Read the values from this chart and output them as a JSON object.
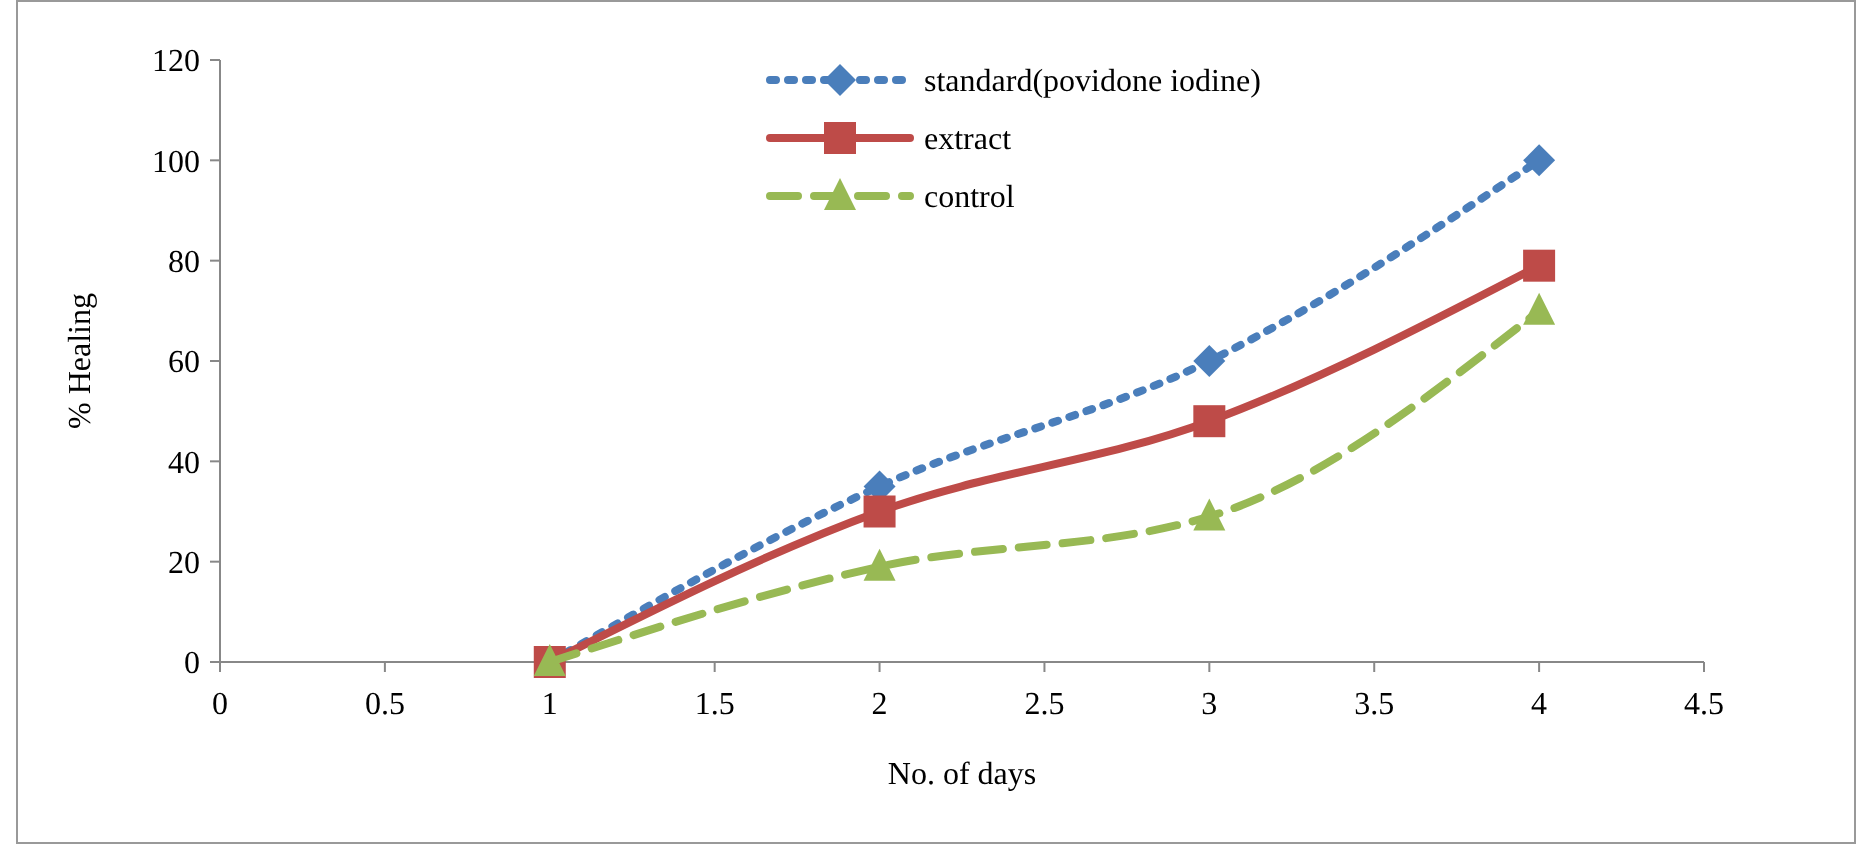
{
  "chart_data": {
    "type": "line",
    "xlabel": "No. of days",
    "ylabel": "% Healing",
    "x": [
      1,
      2,
      3,
      4
    ],
    "xlim": [
      0,
      4.5
    ],
    "xticks": [
      0,
      0.5,
      1,
      1.5,
      2,
      2.5,
      3,
      3.5,
      4,
      4.5
    ],
    "ylim": [
      0,
      120
    ],
    "yticks": [
      0,
      20,
      40,
      60,
      80,
      100,
      120
    ],
    "grid": false,
    "legend": "top",
    "series": [
      {
        "name": "standard(povidone iodine)",
        "color": "#4a7ebb",
        "values": [
          0,
          35,
          60,
          100
        ],
        "marker": "diamond",
        "line_style": "dotted"
      },
      {
        "name": "extract",
        "color": "#be4b48",
        "values": [
          0,
          30,
          48,
          79
        ],
        "marker": "square",
        "line_style": "solid"
      },
      {
        "name": "control",
        "color": "#98b954",
        "values": [
          0,
          19,
          29,
          70
        ],
        "marker": "triangle",
        "line_style": "dashed"
      }
    ]
  }
}
